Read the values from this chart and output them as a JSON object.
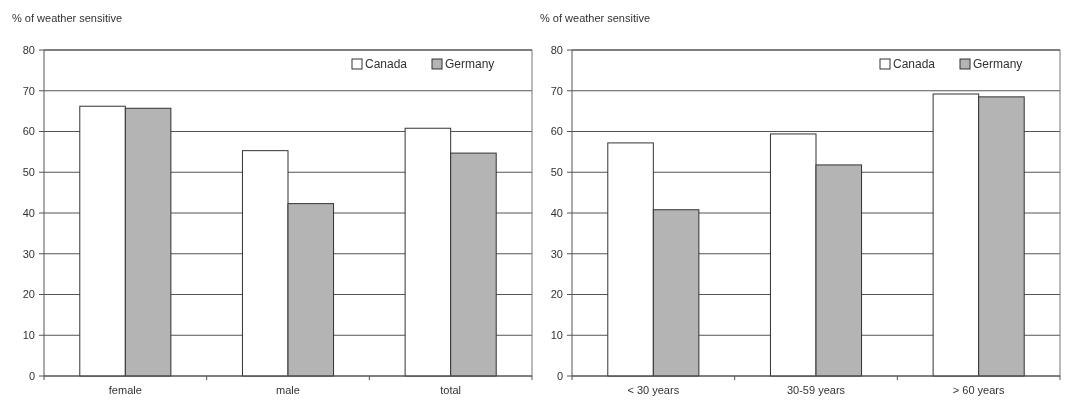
{
  "chart_data": [
    {
      "type": "bar",
      "ylabel": "% of weather sensitive",
      "categories": [
        "female",
        "male",
        "total"
      ],
      "series": [
        {
          "name": "Canada",
          "color": "#ffffff",
          "values": [
            66.2,
            55.3,
            60.8
          ]
        },
        {
          "name": "Germany",
          "color": "#b4b4b4",
          "values": [
            65.7,
            42.3,
            54.7
          ]
        }
      ],
      "ylim": [
        0,
        80
      ],
      "yticks": [
        0,
        10,
        20,
        30,
        40,
        50,
        60,
        70,
        80
      ],
      "grid": "y",
      "legend": "top right"
    },
    {
      "type": "bar",
      "ylabel": "% of weather sensitive",
      "categories": [
        "< 30 years",
        "30-59 years",
        "> 60 years"
      ],
      "series": [
        {
          "name": "Canada",
          "color": "#ffffff",
          "values": [
            57.2,
            59.4,
            69.2
          ]
        },
        {
          "name": "Germany",
          "color": "#b4b4b4",
          "values": [
            40.8,
            51.8,
            68.5
          ]
        }
      ],
      "ylim": [
        0,
        80
      ],
      "yticks": [
        0,
        10,
        20,
        30,
        40,
        50,
        60,
        70,
        80
      ],
      "grid": "y",
      "legend": "top right"
    }
  ]
}
